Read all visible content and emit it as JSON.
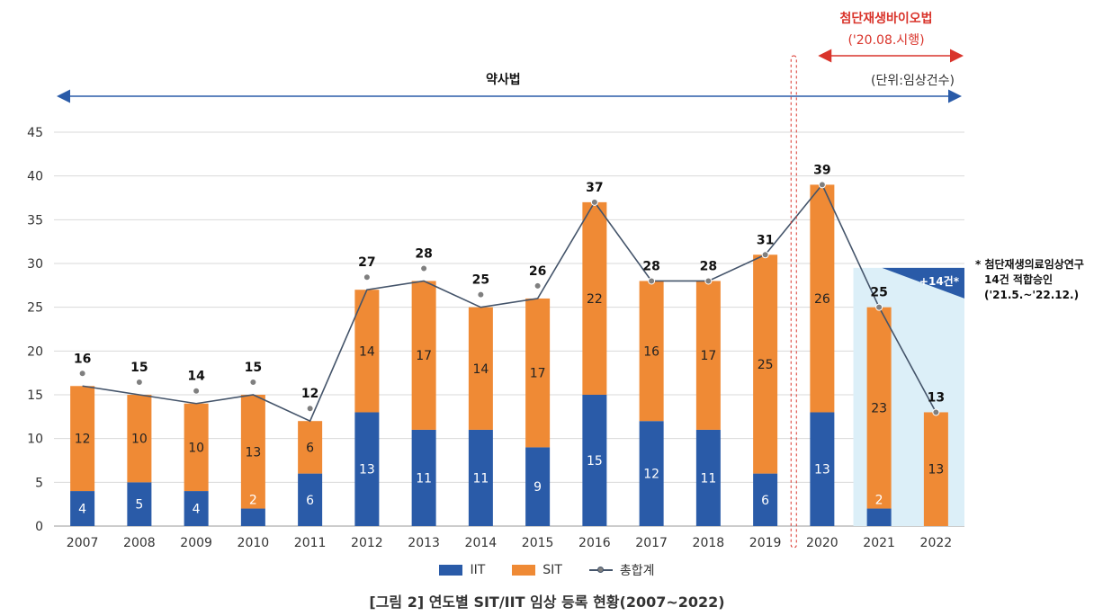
{
  "title": "[그림 2] 연도별 SIT/IIT 임상 등록 현황(2007~2022)",
  "unit_label": "(단위:임상건수)",
  "era1": {
    "label": "약사법"
  },
  "era2": {
    "label": "첨단재생바이오법",
    "sublabel": "('20.08.시행)"
  },
  "note": {
    "badge": "+14건*",
    "lines": [
      "* 첨단재생의료임상연구",
      "14건 적합승인",
      "('21.5.~'22.12.)"
    ]
  },
  "colors": {
    "IIT": "#2a5ba8",
    "SIT": "#ef8a35",
    "line": "#44546a",
    "marker": "#7f7f7f",
    "highlight": "#dceff8",
    "arrow": "#2a5ba8",
    "red": "#d9342b"
  },
  "legend": {
    "iit": "IIT",
    "sit": "SIT",
    "total": "총합계"
  },
  "chart_data": {
    "type": "bar",
    "stacked": true,
    "categories": [
      "2007",
      "2008",
      "2009",
      "2010",
      "2011",
      "2012",
      "2013",
      "2014",
      "2015",
      "2016",
      "2017",
      "2018",
      "2019",
      "2020",
      "2021",
      "2022"
    ],
    "series": [
      {
        "name": "IIT",
        "values": [
          4,
          5,
          4,
          2,
          6,
          13,
          11,
          11,
          9,
          15,
          12,
          11,
          6,
          13,
          2,
          0
        ]
      },
      {
        "name": "SIT",
        "values": [
          12,
          10,
          10,
          13,
          6,
          14,
          17,
          14,
          17,
          22,
          16,
          17,
          25,
          26,
          23,
          13
        ]
      }
    ],
    "line": {
      "name": "총합계",
      "values": [
        16,
        15,
        14,
        15,
        12,
        27,
        28,
        25,
        26,
        37,
        28,
        28,
        31,
        39,
        25,
        13
      ]
    },
    "ylim": [
      0,
      45
    ],
    "yticks": [
      0,
      5,
      10,
      15,
      20,
      25,
      30,
      35,
      40,
      45
    ],
    "grid": true,
    "legend_position": "bottom"
  }
}
